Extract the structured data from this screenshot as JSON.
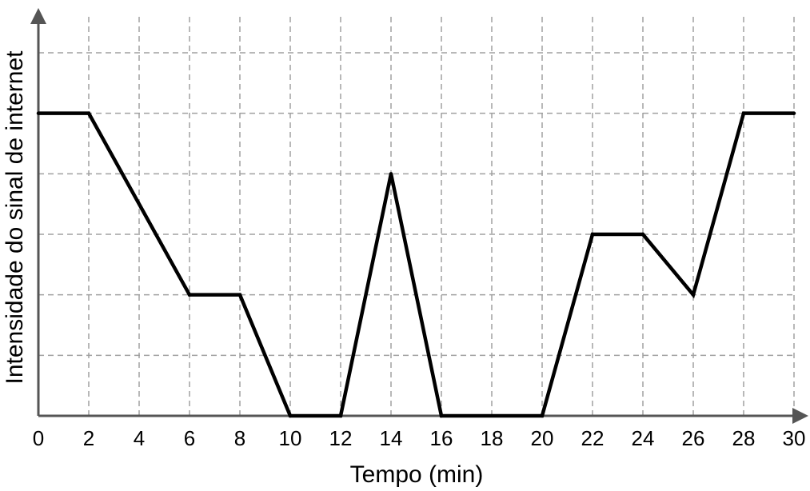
{
  "chart_data": {
    "type": "line",
    "title": "",
    "xlabel": "Tempo (min)",
    "ylabel": "Intensidade do sinal de internet",
    "xlim": [
      0,
      30
    ],
    "ylim": [
      0,
      6
    ],
    "x_ticks": [
      0,
      2,
      4,
      6,
      8,
      10,
      12,
      14,
      16,
      18,
      20,
      22,
      24,
      26,
      28,
      30
    ],
    "y_grid_values": [
      1,
      2,
      3,
      4,
      5,
      6
    ],
    "y_tick_labels_shown": false,
    "grid": true,
    "grid_style": "dashed",
    "line_color": "#000000",
    "grid_color": "#a0a0a0",
    "axis_color": "#555555",
    "series": [
      {
        "x": [
          0,
          2,
          6,
          8,
          10,
          12,
          14,
          16,
          20,
          22,
          24,
          26,
          28,
          30
        ],
        "y": [
          5,
          5,
          2,
          2,
          0,
          0,
          4,
          0,
          0,
          3,
          3,
          2,
          5,
          5
        ]
      }
    ]
  }
}
